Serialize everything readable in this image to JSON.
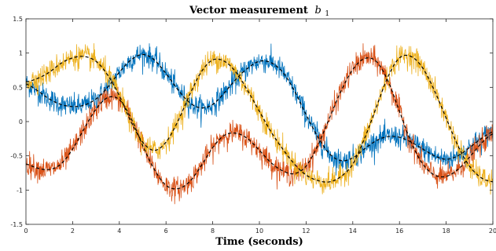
{
  "chart_data": {
    "type": "line",
    "title": "Vector measurement",
    "title_symbol": "b",
    "title_subscript": "1",
    "xlabel": "Time (seconds)",
    "ylabel": "",
    "xlim": [
      0,
      20
    ],
    "ylim": [
      -1.5,
      1.5
    ],
    "x_ticks": [
      "0",
      "2",
      "4",
      "6",
      "8",
      "10",
      "12",
      "14",
      "16",
      "18",
      "20"
    ],
    "y_ticks": [
      "-1.5",
      "-1",
      "-0.5",
      "0",
      "0.5",
      "1",
      "1.5"
    ],
    "grid": false,
    "legend": "none",
    "colors": {
      "blue": "#0072BD",
      "orange": "#D95319",
      "yellow": "#EDB120",
      "estimate": "#000000",
      "axis": "#262626"
    },
    "series": [
      {
        "color": "#0072BD",
        "style": "noisy measurement with dashed estimate",
        "x": [
          0,
          0.5,
          1,
          1.5,
          2,
          2.5,
          3,
          3.5,
          4,
          4.5,
          5,
          5.5,
          6,
          6.5,
          7,
          7.5,
          8,
          8.5,
          9,
          9.5,
          10,
          10.5,
          11,
          11.5,
          12,
          12.5,
          13,
          13.5,
          14,
          14.5,
          15,
          15.5,
          16,
          16.5,
          17,
          17.5,
          18,
          18.5,
          19,
          19.5,
          20
        ],
        "y": [
          0.55,
          0.45,
          0.33,
          0.25,
          0.22,
          0.24,
          0.33,
          0.5,
          0.72,
          0.9,
          0.98,
          0.9,
          0.7,
          0.47,
          0.28,
          0.2,
          0.25,
          0.42,
          0.62,
          0.78,
          0.88,
          0.86,
          0.72,
          0.45,
          0.1,
          -0.22,
          -0.47,
          -0.57,
          -0.53,
          -0.4,
          -0.28,
          -0.22,
          -0.23,
          -0.3,
          -0.4,
          -0.5,
          -0.55,
          -0.5,
          -0.38,
          -0.25,
          -0.15
        ]
      },
      {
        "color": "#D95319",
        "style": "noisy measurement with dashed estimate",
        "x": [
          0,
          0.5,
          1,
          1.5,
          2,
          2.5,
          3,
          3.5,
          4,
          4.5,
          5,
          5.5,
          6,
          6.5,
          7,
          7.5,
          8,
          8.5,
          9,
          9.5,
          10,
          10.5,
          11,
          11.5,
          12,
          12.5,
          13,
          13.5,
          14,
          14.5,
          15,
          15.5,
          16,
          16.5,
          17,
          17.5,
          18,
          18.5,
          19,
          19.5,
          20
        ],
        "y": [
          -0.62,
          -0.68,
          -0.7,
          -0.62,
          -0.4,
          -0.1,
          0.18,
          0.35,
          0.32,
          0.05,
          -0.35,
          -0.7,
          -0.93,
          -0.98,
          -0.88,
          -0.65,
          -0.38,
          -0.2,
          -0.17,
          -0.25,
          -0.42,
          -0.6,
          -0.72,
          -0.76,
          -0.65,
          -0.35,
          0.05,
          0.45,
          0.76,
          0.92,
          0.88,
          0.6,
          0.15,
          -0.3,
          -0.62,
          -0.78,
          -0.8,
          -0.7,
          -0.52,
          -0.32,
          -0.18
        ]
      },
      {
        "color": "#EDB120",
        "style": "noisy measurement with dashed estimate",
        "x": [
          0,
          0.5,
          1,
          1.5,
          2,
          2.5,
          3,
          3.5,
          4,
          4.5,
          5,
          5.5,
          6,
          6.5,
          7,
          7.5,
          8,
          8.5,
          9,
          9.5,
          10,
          10.5,
          11,
          11.5,
          12,
          12.5,
          13,
          13.5,
          14,
          14.5,
          15,
          15.5,
          16,
          16.5,
          17,
          17.5,
          18,
          18.5,
          19,
          19.5,
          20
        ],
        "y": [
          0.58,
          0.63,
          0.72,
          0.85,
          0.93,
          0.95,
          0.88,
          0.68,
          0.38,
          0.0,
          -0.3,
          -0.42,
          -0.3,
          0.0,
          0.38,
          0.72,
          0.9,
          0.88,
          0.72,
          0.45,
          0.15,
          -0.15,
          -0.4,
          -0.62,
          -0.78,
          -0.86,
          -0.88,
          -0.8,
          -0.62,
          -0.25,
          0.2,
          0.65,
          0.93,
          0.95,
          0.78,
          0.45,
          0.05,
          -0.35,
          -0.65,
          -0.82,
          -0.88
        ]
      }
    ]
  }
}
